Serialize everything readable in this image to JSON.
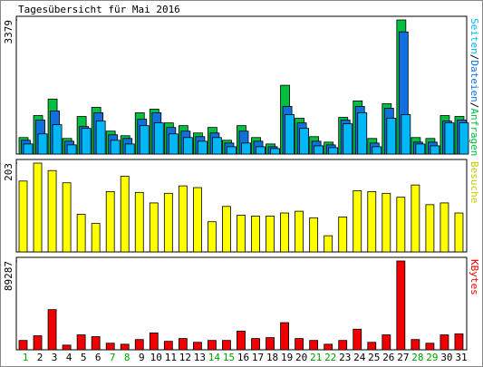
{
  "chart_data": {
    "type": "bar",
    "title": "Tagesübersicht für Mai 2016",
    "categories": [
      "1",
      "2",
      "3",
      "4",
      "5",
      "6",
      "7",
      "8",
      "9",
      "10",
      "11",
      "12",
      "13",
      "14",
      "15",
      "16",
      "17",
      "18",
      "19",
      "20",
      "21",
      "22",
      "23",
      "24",
      "25",
      "26",
      "27",
      "28",
      "29",
      "30",
      "31"
    ],
    "category_colors": [
      "#00a000",
      "#000000",
      "#000000",
      "#000000",
      "#000000",
      "#000000",
      "#00a000",
      "#00a000",
      "#000000",
      "#000000",
      "#000000",
      "#000000",
      "#000000",
      "#00a000",
      "#00a000",
      "#000000",
      "#000000",
      "#000000",
      "#000000",
      "#000000",
      "#00a000",
      "#00a000",
      "#000000",
      "#000000",
      "#000000",
      "#000000",
      "#000000",
      "#00a000",
      "#00a000",
      "#000000",
      "#000000"
    ],
    "panels": [
      {
        "ylim": [
          0,
          3379
        ],
        "yticks": [
          3379
        ],
        "series": [
          {
            "name": "Anfragen",
            "color": "#00c040",
            "values": [
              416,
              970,
              1386,
              393,
              947,
              1178,
              578,
              462,
              1040,
              1132,
              785,
              716,
              531,
              670,
              347,
              716,
              416,
              254,
              1733,
              901,
              439,
              300,
              924,
              1340,
              393,
              1271,
              3379,
              416,
              393,
              970,
              947
            ]
          },
          {
            "name": "Dateien",
            "color": "#1070e0",
            "values": [
              347,
              855,
              1086,
              323,
              693,
              1040,
              485,
              393,
              878,
              1040,
              670,
              578,
              439,
              531,
              277,
              578,
              323,
              185,
              1201,
              785,
              323,
              231,
              855,
              1201,
              277,
              1155,
              3078,
              300,
              300,
              832,
              855
            ]
          },
          {
            "name": "Seiten",
            "color": "#00b8f8",
            "values": [
              254,
              508,
              739,
              231,
              647,
              832,
              347,
              254,
              716,
              785,
              508,
              416,
              323,
              416,
              185,
              277,
              185,
              139,
              993,
              647,
              208,
              162,
              762,
              1040,
              185,
              901,
              993,
              254,
              208,
              785,
              785
            ]
          }
        ]
      },
      {
        "ylim": [
          0,
          203
        ],
        "yticks": [
          203
        ],
        "series": [
          {
            "name": "Besuche",
            "color": "#ffff00",
            "label_color": "#c8c800",
            "values": [
              162,
              203,
              186,
              158,
              86,
              65,
              138,
              173,
              136,
              112,
              134,
              151,
              147,
              69,
              104,
              84,
              82,
              82,
              89,
              93,
              78,
              37,
              80,
              140,
              138,
              134,
              125,
              153,
              108,
              112,
              89
            ]
          }
        ]
      },
      {
        "ylim": [
          0,
          89287
        ],
        "yticks": [
          89287
        ],
        "series": [
          {
            "name": "KBytes",
            "color": "#f00000",
            "values": [
              9400,
              14100,
              40400,
              4700,
              15000,
              13200,
              6600,
              5600,
              10300,
              16900,
              8500,
              11300,
              7500,
              9400,
              9400,
              18800,
              11300,
              12200,
              27300,
              11300,
              9400,
              5600,
              9400,
              20700,
              7500,
              15000,
              89287,
              10300,
              6600,
              15000,
              16000
            ]
          }
        ]
      }
    ]
  }
}
